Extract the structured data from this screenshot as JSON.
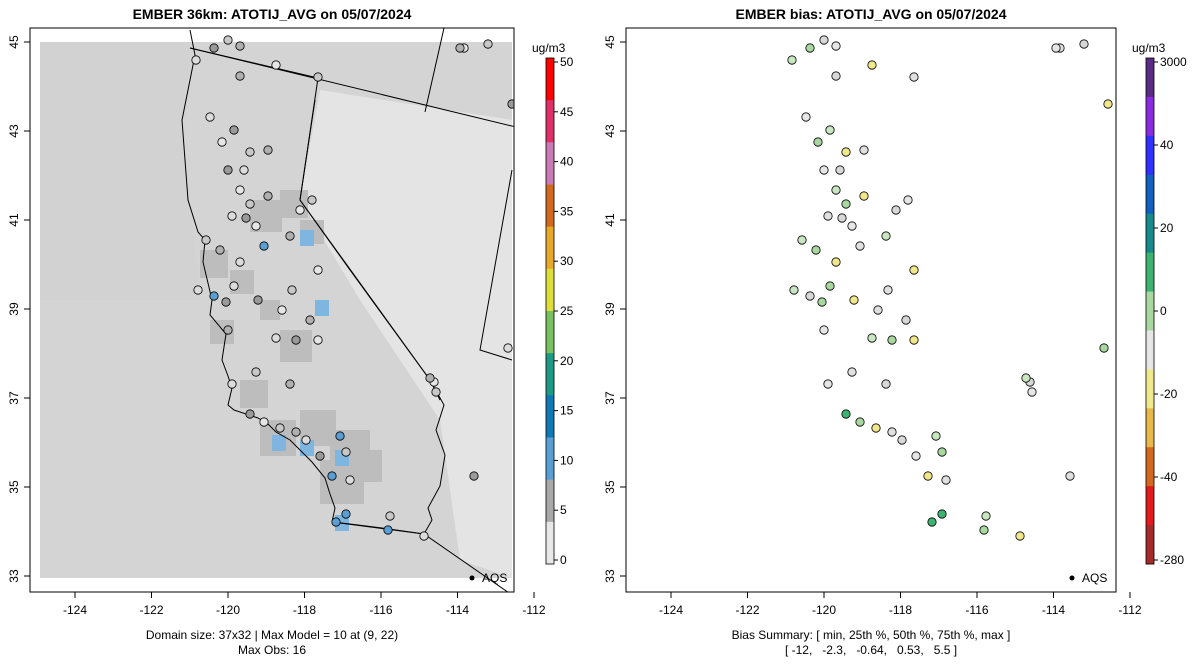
{
  "left_panel": {
    "title": "EMBER 36km: ATOTIJ_AVG on 05/07/2024",
    "caption_line1": "Domain size: 37x32 | Max Model = 10 at (9, 22)",
    "caption_line2": "Max Obs: 16",
    "colorbar": {
      "unit": "ug/m3",
      "ticks": [
        "0",
        "5",
        "10",
        "15",
        "20",
        "25",
        "30",
        "35",
        "40",
        "45",
        "50"
      ],
      "colors": [
        "#e8e8e8",
        "#a9a9a9",
        "#5a9fd4",
        "#0f79b8",
        "#1c9a83",
        "#78c060",
        "#dede3a",
        "#e8a82a",
        "#d2691e",
        "#c97ab7",
        "#e0306a",
        "#ff0000"
      ]
    },
    "station_label": "AQS"
  },
  "right_panel": {
    "title": "EMBER bias: ATOTIJ_AVG on 05/07/2024",
    "caption_line1": "Bias Summary: [ min, 25th %, 50th %, 75th %, max ]",
    "caption_line2": "[ -12,   -2.3,   -0.64,   0.53,   5.5 ]",
    "colorbar": {
      "unit": "ug/m3",
      "ticks": [
        "3000",
        "40",
        "20",
        "0",
        "-20",
        "-40",
        "-280"
      ],
      "colors": [
        "#a52a2a",
        "#e41a1c",
        "#d2691e",
        "#e8b84a",
        "#f0e88a",
        "#e6e6e6",
        "#a8d8a0",
        "#3cb371",
        "#178b8b",
        "#1060c0",
        "#3030ff",
        "#8a2be2",
        "#5b2c83"
      ]
    },
    "station_label": "AQS"
  },
  "map_axes": {
    "x_ticks": [
      "-124",
      "-122",
      "-120",
      "-118",
      "-116",
      "-114",
      "-112"
    ],
    "y_ticks": [
      "45",
      "43",
      "41",
      "39",
      "37",
      "35",
      "33"
    ]
  }
}
